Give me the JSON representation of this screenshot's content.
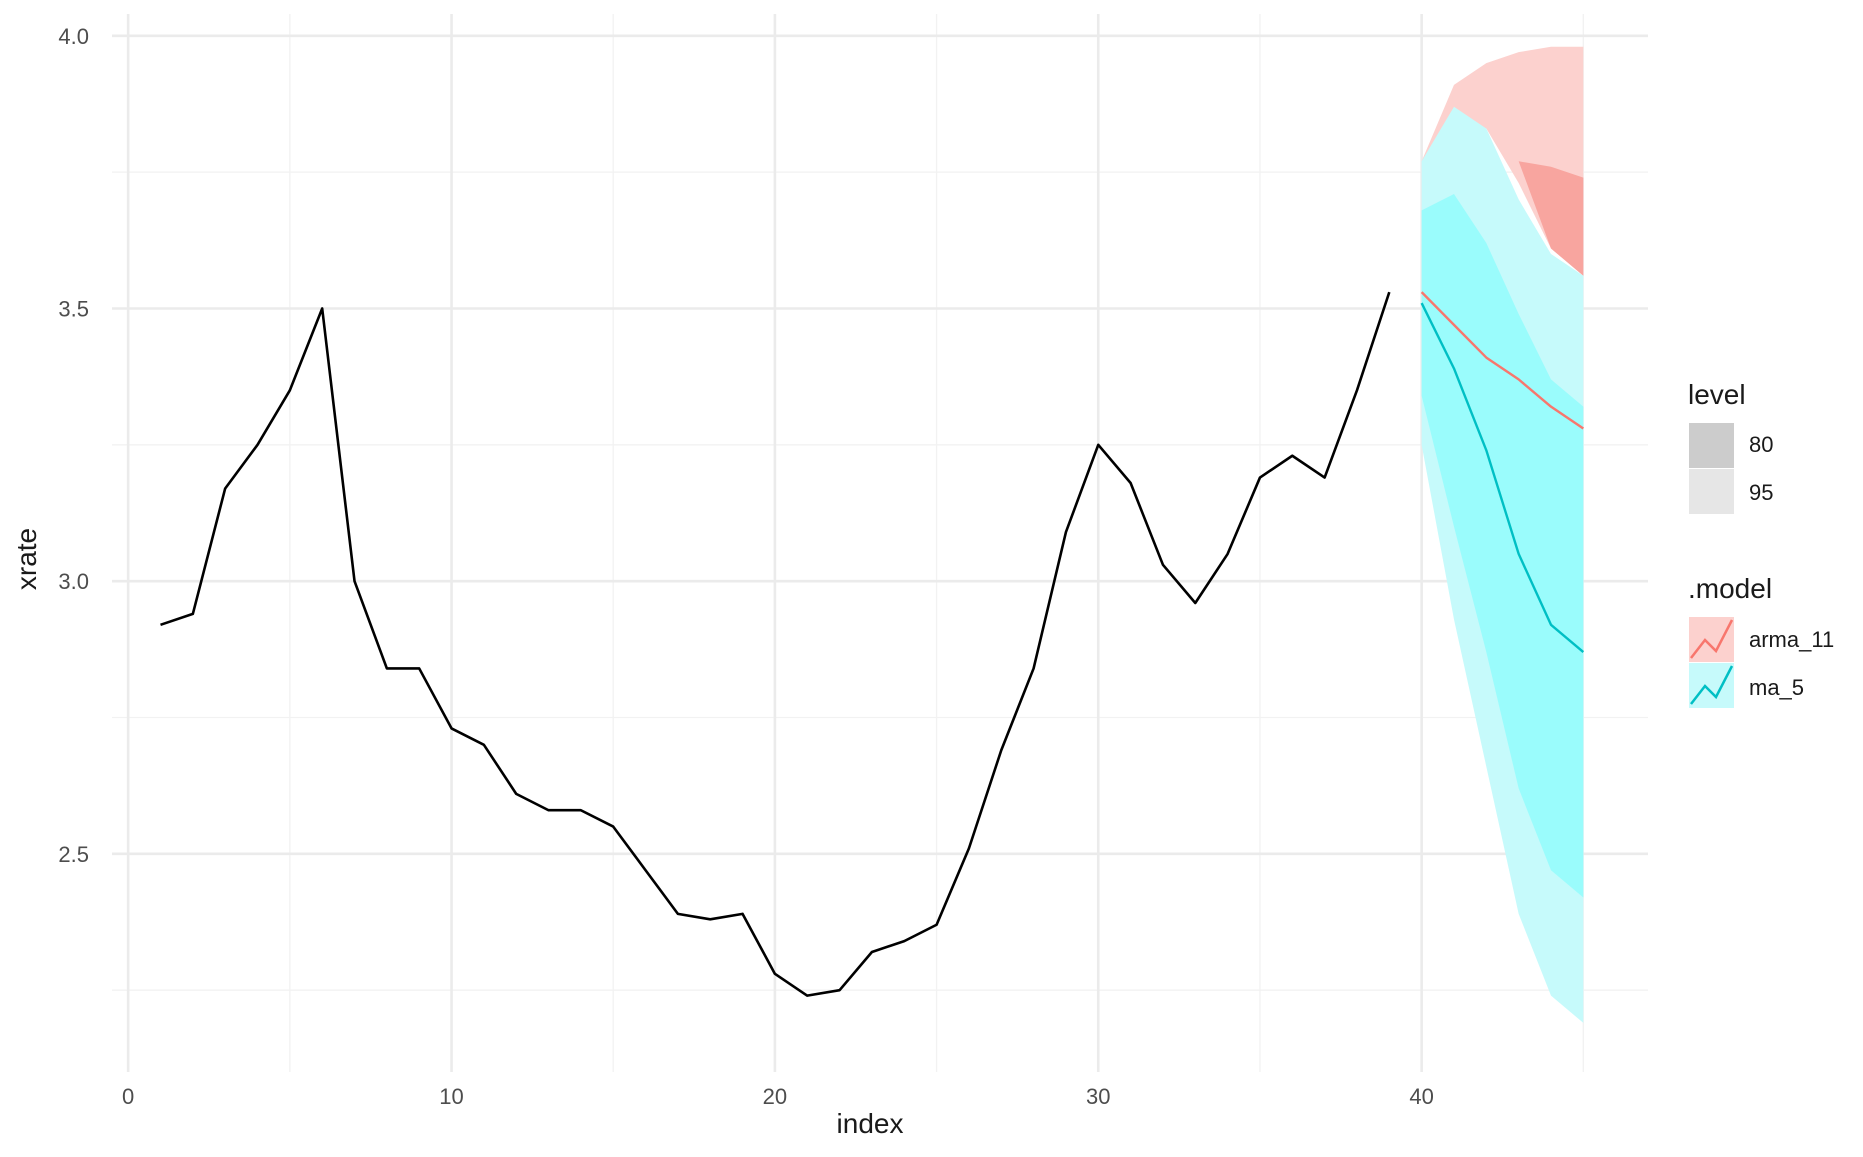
{
  "colors": {
    "history": "#000000",
    "arma_11": "#F8766D",
    "ma_5": "#00BFC4",
    "arma_11_fill_95": "#FCD1CE",
    "arma_11_fill_80": "#F8A59F",
    "ma_5_fill_95": "#C6FAFB",
    "ma_5_fill_80": "#9AFCFC",
    "level_80": "#CCCCCC",
    "level_95": "#E6E6E6",
    "grid_major": "#EBEBEB",
    "grid_minor": "#F2F2F2"
  },
  "chart_data": {
    "type": "line",
    "xlabel": "index",
    "ylabel": "xrate",
    "xlim": [
      -0.5,
      47
    ],
    "ylim": [
      2.1,
      4.04
    ],
    "x_ticks": [
      0,
      10,
      20,
      30,
      40
    ],
    "y_ticks": [
      2.5,
      3.0,
      3.5,
      4.0
    ],
    "x_tick_labels": [
      "0",
      "10",
      "20",
      "30",
      "40"
    ],
    "y_tick_labels": [
      "2.5",
      "3.0",
      "3.5",
      "4.0"
    ],
    "grid": true,
    "legend_position": "right",
    "history": {
      "x": [
        1,
        2,
        3,
        4,
        5,
        6,
        7,
        8,
        9,
        10,
        11,
        12,
        13,
        14,
        15,
        16,
        17,
        18,
        19,
        20,
        21,
        22,
        23,
        24,
        25,
        26,
        27,
        28,
        29,
        30,
        31,
        32,
        33,
        34,
        35,
        36,
        37,
        38,
        39
      ],
      "y": [
        2.92,
        2.94,
        3.17,
        3.25,
        3.35,
        3.5,
        3.0,
        2.84,
        2.84,
        2.73,
        2.7,
        2.61,
        2.58,
        2.58,
        2.55,
        2.47,
        2.39,
        2.38,
        2.39,
        2.28,
        2.24,
        2.25,
        2.32,
        2.34,
        2.37,
        2.51,
        2.69,
        2.84,
        3.09,
        3.25,
        3.18,
        3.03,
        2.96,
        3.05,
        3.19,
        3.23,
        3.19,
        3.35,
        3.53
      ]
    },
    "forecasts": [
      {
        "name": "arma_11",
        "x": [
          40,
          41,
          42,
          43,
          44,
          45
        ],
        "mean": [
          3.53,
          3.47,
          3.41,
          3.37,
          3.32,
          3.28
        ],
        "lo80": [
          3.53,
          3.58,
          3.65,
          3.77,
          3.61,
          3.56
        ],
        "hi80": [
          3.53,
          3.58,
          3.65,
          3.77,
          3.76,
          3.74
        ],
        "lo95": [
          3.77,
          3.85,
          3.83,
          3.73,
          3.61,
          3.56
        ],
        "hi95": [
          3.77,
          3.91,
          3.95,
          3.97,
          3.98,
          3.98
        ]
      },
      {
        "name": "ma_5",
        "x": [
          40,
          41,
          42,
          43,
          44,
          45
        ],
        "mean": [
          3.51,
          3.39,
          3.24,
          3.05,
          2.92,
          2.87
        ],
        "lo80": [
          3.34,
          3.1,
          2.87,
          2.62,
          2.47,
          2.42
        ],
        "hi80": [
          3.68,
          3.71,
          3.62,
          3.49,
          3.37,
          3.32
        ],
        "lo95": [
          3.25,
          2.93,
          2.66,
          2.39,
          2.24,
          2.19
        ],
        "hi95": [
          3.77,
          3.87,
          3.83,
          3.7,
          3.6,
          3.56
        ]
      }
    ],
    "legend": {
      "level_title": "level",
      "level_items": [
        "80",
        "95"
      ],
      "model_title": ".model",
      "model_items": [
        "arma_11",
        "ma_5"
      ]
    }
  }
}
